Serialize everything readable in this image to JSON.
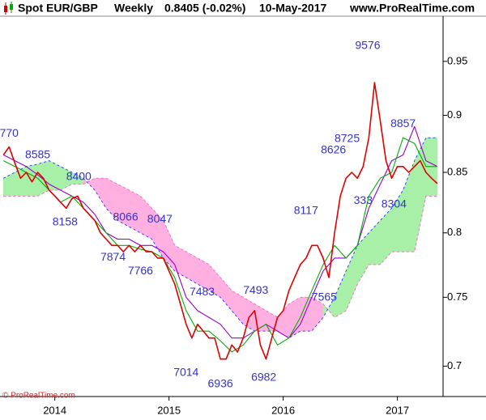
{
  "chart_data": {
    "type": "line",
    "title": "Spot EUR/GBP",
    "period": "Weekly",
    "last_quote": "0.8405 (-0.02%)",
    "date": "10-May-2017",
    "source": "www.ProRealTime.com",
    "watermark": "© ProRealTime.com",
    "yscale": "log",
    "xlim": [
      2013.52,
      2017.4
    ],
    "ylim": [
      0.679,
      0.994
    ],
    "xticks": [
      2014,
      2015,
      2016,
      2017
    ],
    "yticks": [
      0.7,
      0.75,
      0.8,
      0.85,
      0.9,
      0.95
    ],
    "series": [
      {
        "color": "#e00000",
        "x": [
          2013.55,
          2013.6,
          2013.65,
          2013.7,
          2013.75,
          2013.8,
          2013.85,
          2013.9,
          2013.95,
          2014,
          2014.05,
          2014.1,
          2014.15,
          2014.2,
          2014.25,
          2014.3,
          2014.35,
          2014.4,
          2014.45,
          2014.5,
          2014.55,
          2014.6,
          2014.65,
          2014.7,
          2014.75,
          2014.8,
          2014.85,
          2014.9,
          2014.95,
          2015,
          2015.05,
          2015.1,
          2015.15,
          2015.2,
          2015.25,
          2015.3,
          2015.35,
          2015.4,
          2015.45,
          2015.5,
          2015.55,
          2015.6,
          2015.65,
          2015.7,
          2015.75,
          2015.8,
          2015.85,
          2015.9,
          2015.95,
          2016,
          2016.05,
          2016.1,
          2016.15,
          2016.2,
          2016.25,
          2016.3,
          2016.35,
          2016.4,
          2016.45,
          2016.5,
          2016.55,
          2016.6,
          2016.65,
          2016.7,
          2016.75,
          2016.8,
          2016.85,
          2016.9,
          2016.95,
          2017,
          2017.05,
          2017.1,
          2017.15,
          2017.2,
          2017.25,
          2017.3,
          2017.35
        ],
        "values": [
          0.865,
          0.872,
          0.858,
          0.845,
          0.85,
          0.842,
          0.85,
          0.845,
          0.835,
          0.83,
          0.825,
          0.82,
          0.828,
          0.83,
          0.82,
          0.815,
          0.81,
          0.8,
          0.795,
          0.79,
          0.79,
          0.785,
          0.79,
          0.785,
          0.79,
          0.785,
          0.785,
          0.78,
          0.78,
          0.77,
          0.76,
          0.745,
          0.73,
          0.72,
          0.73,
          0.725,
          0.72,
          0.72,
          0.705,
          0.705,
          0.715,
          0.71,
          0.72,
          0.735,
          0.74,
          0.715,
          0.705,
          0.72,
          0.735,
          0.74,
          0.755,
          0.765,
          0.775,
          0.78,
          0.79,
          0.79,
          0.78,
          0.765,
          0.8,
          0.83,
          0.845,
          0.85,
          0.845,
          0.855,
          0.88,
          0.93,
          0.895,
          0.86,
          0.845,
          0.855,
          0.855,
          0.85,
          0.855,
          0.86,
          0.85,
          0.845,
          0.8405
        ]
      },
      {
        "color": "#00b000",
        "x": [
          2013.55,
          2013.65,
          2013.75,
          2013.85,
          2013.95,
          2014.05,
          2014.15,
          2014.25,
          2014.35,
          2014.45,
          2014.55,
          2014.65,
          2014.75,
          2014.85,
          2014.95,
          2015.05,
          2015.15,
          2015.25,
          2015.35,
          2015.45,
          2015.55,
          2015.65,
          2015.75,
          2015.85,
          2015.95,
          2016.05,
          2016.15,
          2016.25,
          2016.35,
          2016.45,
          2016.55,
          2016.65,
          2016.75,
          2016.85,
          2016.95,
          2017.05,
          2017.15,
          2017.25,
          2017.35
        ],
        "values": [
          0.86,
          0.855,
          0.85,
          0.845,
          0.835,
          0.825,
          0.83,
          0.82,
          0.81,
          0.8,
          0.79,
          0.79,
          0.787,
          0.785,
          0.78,
          0.765,
          0.74,
          0.725,
          0.725,
          0.718,
          0.71,
          0.715,
          0.725,
          0.73,
          0.715,
          0.72,
          0.735,
          0.755,
          0.775,
          0.79,
          0.78,
          0.79,
          0.83,
          0.845,
          0.85,
          0.88,
          0.875,
          0.855,
          0.855
        ]
      },
      {
        "color": "#9900cc",
        "x": [
          2013.55,
          2013.65,
          2013.75,
          2013.85,
          2013.95,
          2014.05,
          2014.15,
          2014.25,
          2014.35,
          2014.45,
          2014.55,
          2014.65,
          2014.75,
          2014.85,
          2014.95,
          2015.05,
          2015.15,
          2015.25,
          2015.35,
          2015.45,
          2015.55,
          2015.65,
          2015.75,
          2015.85,
          2015.95,
          2016.05,
          2016.15,
          2016.25,
          2016.35,
          2016.45,
          2016.55,
          2016.65,
          2016.75,
          2016.85,
          2016.95,
          2017.05,
          2017.15,
          2017.25,
          2017.35
        ],
        "values": [
          0.865,
          0.86,
          0.855,
          0.848,
          0.84,
          0.835,
          0.83,
          0.825,
          0.815,
          0.8,
          0.795,
          0.795,
          0.79,
          0.79,
          0.785,
          0.775,
          0.75,
          0.74,
          0.735,
          0.73,
          0.72,
          0.72,
          0.725,
          0.73,
          0.725,
          0.72,
          0.73,
          0.75,
          0.77,
          0.78,
          0.78,
          0.79,
          0.82,
          0.84,
          0.86,
          0.865,
          0.89,
          0.86,
          0.855
        ]
      }
    ],
    "cloud": {
      "x": [
        2013.55,
        2013.65,
        2013.75,
        2013.85,
        2013.95,
        2014.05,
        2014.15,
        2014.25,
        2014.35,
        2014.45,
        2014.55,
        2014.65,
        2014.75,
        2014.85,
        2014.95,
        2015.05,
        2015.15,
        2015.25,
        2015.35,
        2015.45,
        2015.55,
        2015.65,
        2015.75,
        2015.85,
        2015.95,
        2016.05,
        2016.15,
        2016.25,
        2016.35,
        2016.45,
        2016.55,
        2016.65,
        2016.75,
        2016.85,
        2016.95,
        2017.05,
        2017.15,
        2017.25,
        2017.35
      ],
      "span_a": [
        0.845,
        0.85,
        0.855,
        0.857,
        0.86,
        0.855,
        0.85,
        0.845,
        0.835,
        0.82,
        0.81,
        0.805,
        0.8,
        0.795,
        0.78,
        0.77,
        0.765,
        0.76,
        0.755,
        0.75,
        0.74,
        0.73,
        0.725,
        0.725,
        0.725,
        0.72,
        0.725,
        0.725,
        0.735,
        0.75,
        0.77,
        0.79,
        0.8,
        0.81,
        0.82,
        0.835,
        0.86,
        0.88,
        0.88
      ],
      "span_b": [
        0.83,
        0.83,
        0.83,
        0.83,
        0.835,
        0.835,
        0.84,
        0.84,
        0.845,
        0.845,
        0.84,
        0.835,
        0.83,
        0.82,
        0.81,
        0.79,
        0.785,
        0.78,
        0.775,
        0.765,
        0.755,
        0.75,
        0.745,
        0.74,
        0.735,
        0.745,
        0.75,
        0.75,
        0.745,
        0.735,
        0.74,
        0.76,
        0.775,
        0.775,
        0.785,
        0.785,
        0.785,
        0.83,
        0.83
      ],
      "bull_color": "#a8f0a8",
      "bear_color": "#ffb0e0",
      "span_a_color": "#3344ff",
      "span_b_color": "#ff66cc"
    },
    "annotation_color": "#3333cc",
    "annotations": [
      {
        "label": "770",
        "x": 2013.6,
        "y": 0.877,
        "position": "above"
      },
      {
        "label": "8585",
        "x": 2013.85,
        "y": 0.8585,
        "position": "above"
      },
      {
        "label": "8400",
        "x": 2014.21,
        "y": 0.84,
        "position": "above"
      },
      {
        "label": "8158",
        "x": 2014.09,
        "y": 0.8158,
        "position": "below"
      },
      {
        "label": "8066",
        "x": 2014.62,
        "y": 0.8066,
        "position": "above"
      },
      {
        "label": "8047",
        "x": 2014.92,
        "y": 0.8047,
        "position": "above"
      },
      {
        "label": "7874",
        "x": 2014.51,
        "y": 0.7874,
        "position": "below"
      },
      {
        "label": "7766",
        "x": 2014.75,
        "y": 0.7766,
        "position": "below"
      },
      {
        "label": "7483",
        "x": 2015.29,
        "y": 0.7483,
        "position": "above"
      },
      {
        "label": "7014",
        "x": 2015.15,
        "y": 0.7014,
        "position": "below"
      },
      {
        "label": "6936",
        "x": 2015.45,
        "y": 0.6936,
        "position": "below"
      },
      {
        "label": "7493",
        "x": 2015.76,
        "y": 0.7493,
        "position": "above"
      },
      {
        "label": "6982",
        "x": 2015.83,
        "y": 0.6982,
        "position": "below"
      },
      {
        "label": "7565",
        "x": 2016.36,
        "y": 0.7565,
        "position": "below"
      },
      {
        "label": "8117",
        "x": 2016.2,
        "y": 0.8117,
        "position": "above"
      },
      {
        "label": "8626",
        "x": 2016.44,
        "y": 0.8626,
        "position": "above"
      },
      {
        "label": "8725",
        "x": 2016.56,
        "y": 0.8725,
        "position": "above"
      },
      {
        "label": "9576",
        "x": 2016.74,
        "y": 0.9576,
        "position": "above"
      },
      {
        "label": "8857",
        "x": 2017.05,
        "y": 0.8857,
        "position": "above"
      },
      {
        "label": "333",
        "x": 2016.7,
        "y": 0.8333,
        "position": "below"
      },
      {
        "label": "8304",
        "x": 2016.97,
        "y": 0.8304,
        "position": "below"
      }
    ]
  }
}
